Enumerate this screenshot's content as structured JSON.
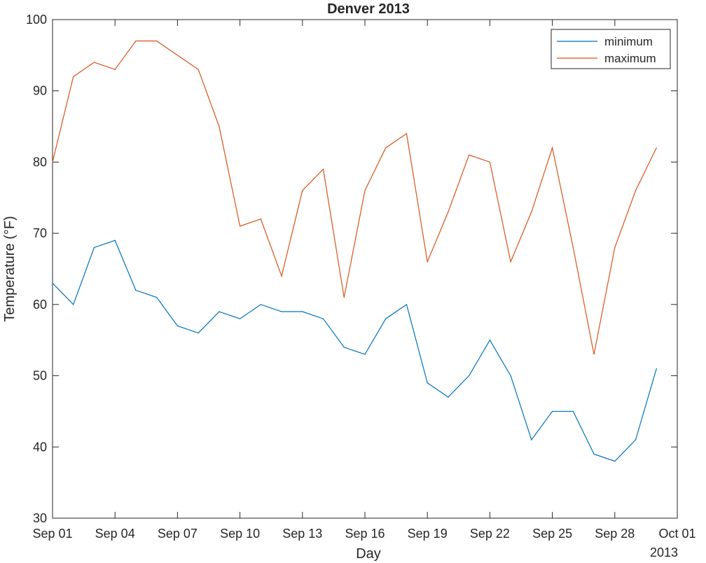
{
  "chart_data": {
    "type": "line",
    "title": "Denver 2013",
    "xlabel": "Day",
    "ylabel": "Temperature (°F)",
    "year_label": "2013",
    "ylim": [
      30,
      100
    ],
    "xlim": [
      0,
      30
    ],
    "x": [
      0,
      1,
      2,
      3,
      4,
      5,
      6,
      7,
      8,
      9,
      10,
      11,
      12,
      13,
      14,
      15,
      16,
      17,
      18,
      19,
      20,
      21,
      22,
      23,
      24,
      25,
      26,
      27,
      28,
      29
    ],
    "x_ticks": [
      {
        "value": 0,
        "label": "Sep 01"
      },
      {
        "value": 3,
        "label": "Sep 04"
      },
      {
        "value": 6,
        "label": "Sep 07"
      },
      {
        "value": 9,
        "label": "Sep 10"
      },
      {
        "value": 12,
        "label": "Sep 13"
      },
      {
        "value": 15,
        "label": "Sep 16"
      },
      {
        "value": 18,
        "label": "Sep 19"
      },
      {
        "value": 21,
        "label": "Sep 22"
      },
      {
        "value": 24,
        "label": "Sep 25"
      },
      {
        "value": 27,
        "label": "Sep 28"
      },
      {
        "value": 30,
        "label": "Oct 01"
      }
    ],
    "y_ticks": [
      30,
      40,
      50,
      60,
      70,
      80,
      90,
      100
    ],
    "grid": false,
    "legend_position": "top-right",
    "series": [
      {
        "name": "minimum",
        "color": "#0072BD",
        "values": [
          63,
          60,
          68,
          69,
          62,
          61,
          57,
          56,
          59,
          58,
          60,
          59,
          59,
          58,
          54,
          53,
          58,
          60,
          49,
          47,
          50,
          55,
          50,
          41,
          45,
          45,
          39,
          38,
          41,
          51
        ]
      },
      {
        "name": "maximum",
        "color": "#D95319",
        "values": [
          80,
          92,
          94,
          93,
          97,
          97,
          95,
          93,
          85,
          71,
          72,
          64,
          76,
          79,
          61,
          76,
          82,
          84,
          66,
          73,
          81,
          80,
          66,
          73,
          82,
          68,
          53,
          68,
          76,
          82
        ]
      }
    ]
  }
}
